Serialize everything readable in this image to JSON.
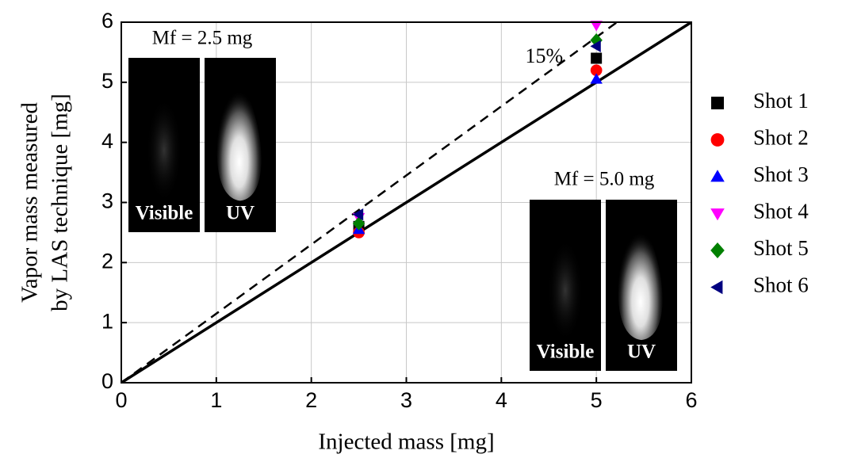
{
  "chart_data": {
    "type": "scatter",
    "xlabel": "Injected mass [mg]",
    "ylabel": [
      "Vapor mass measured",
      "by LAS technique [mg]"
    ],
    "x": [
      2.5,
      5
    ],
    "series": [
      {
        "name": "Shot 1",
        "color": "#000000",
        "marker": "square",
        "values": [
          2.6,
          5.4
        ]
      },
      {
        "name": "Shot 2",
        "color": "#ff0000",
        "marker": "circle",
        "values": [
          2.5,
          5.2
        ]
      },
      {
        "name": "Shot 3",
        "color": "#0000ff",
        "marker": "triangle-up",
        "values": [
          2.55,
          5.05
        ]
      },
      {
        "name": "Shot 4",
        "color": "#ff00ff",
        "marker": "triangle-down",
        "values": [
          2.75,
          5.95
        ]
      },
      {
        "name": "Shot 5",
        "color": "#008000",
        "marker": "diamond",
        "values": [
          2.65,
          5.7
        ]
      },
      {
        "name": "Shot 6",
        "color": "#000080",
        "marker": "triangle-left",
        "values": [
          2.8,
          5.6
        ]
      }
    ],
    "reference_lines": [
      {
        "slope": 1,
        "style": "solid"
      },
      {
        "slope": 1.15,
        "style": "dashed",
        "label": "15%"
      }
    ],
    "insets": [
      {
        "title": "Mf = 2.5 mg",
        "panels": [
          "Visible",
          "UV"
        ]
      },
      {
        "title": "Mf = 5.0 mg",
        "panels": [
          "Visible",
          "UV"
        ]
      }
    ],
    "xlim": [
      0,
      6
    ],
    "ylim": [
      0,
      6
    ],
    "xticks": [
      0,
      1,
      2,
      3,
      4,
      5,
      6
    ],
    "yticks": [
      0,
      1,
      2,
      3,
      4,
      5,
      6
    ],
    "grid": true,
    "legend": "right"
  }
}
